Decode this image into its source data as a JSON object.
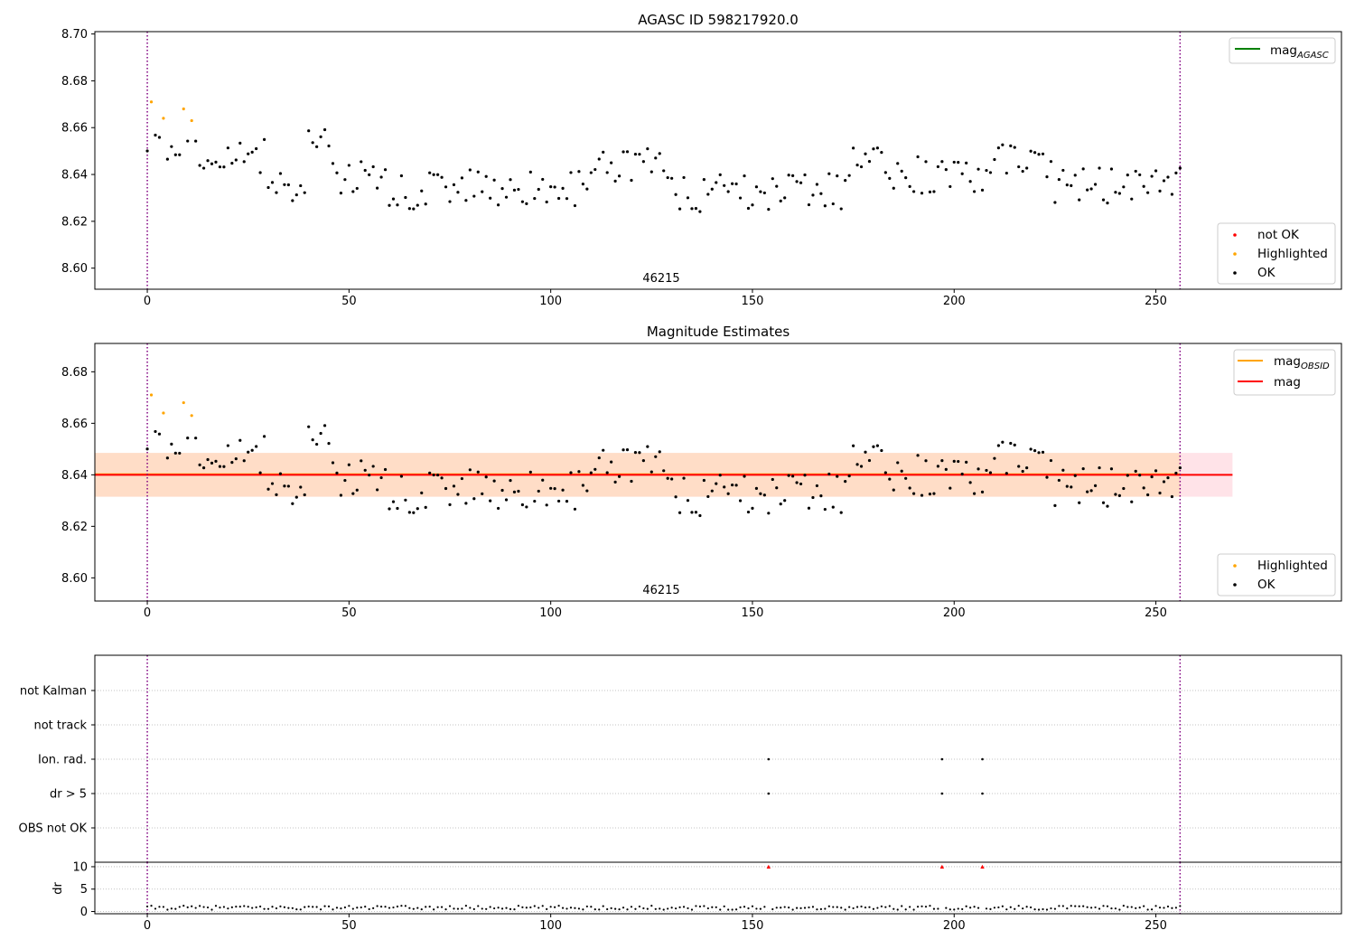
{
  "figure": {
    "panel1_title": "AGASC ID 598217920.0",
    "panel2_title": "Magnitude Estimates",
    "obsid_annotation": "46215"
  },
  "colors": {
    "ok": "#000000",
    "highlighted": "#ffa500",
    "not_ok": "#ff0000",
    "agasc_line": "#008000",
    "obsid_line": "#ffa500",
    "mag_line": "#ff0000",
    "mag_band": "#ffc0cb",
    "obsid_band": "#ffdab9",
    "boundary": "#800080",
    "grid": "#b0b0b0"
  },
  "chart_data": [
    {
      "type": "scatter",
      "title": "AGASC ID 598217920.0",
      "xlim": [
        -13,
        296
      ],
      "ylim": [
        8.591,
        8.701
      ],
      "x_ticks": [
        0,
        50,
        100,
        150,
        200,
        250
      ],
      "y_ticks": [
        8.6,
        8.62,
        8.64,
        8.66,
        8.68,
        8.7
      ],
      "y_tick_labels": [
        "8.60",
        "8.62",
        "8.64",
        "8.66",
        "8.68",
        "8.70"
      ],
      "vlines": [
        0,
        256
      ],
      "annotation": "46215",
      "legend_lines": [
        {
          "label": "mag",
          "sub": "AGASC",
          "color": "#008000"
        }
      ],
      "legend_markers": [
        {
          "label": "not OK",
          "color": "#ff0000"
        },
        {
          "label": "Highlighted",
          "color": "#ffa500"
        },
        {
          "label": "OK",
          "color": "#000000"
        }
      ],
      "series": [
        {
          "name": "Highlighted",
          "points": [
            [
              1,
              8.671
            ],
            [
              4,
              8.664
            ],
            [
              9,
              8.668
            ],
            [
              11,
              8.663
            ]
          ]
        }
      ]
    },
    {
      "type": "scatter",
      "title": "Magnitude Estimates",
      "xlim": [
        -13,
        296
      ],
      "ylim": [
        8.591,
        8.691
      ],
      "x_ticks": [
        0,
        50,
        100,
        150,
        200,
        250
      ],
      "y_ticks": [
        8.6,
        8.62,
        8.64,
        8.66,
        8.68
      ],
      "y_tick_labels": [
        "8.60",
        "8.62",
        "8.64",
        "8.66",
        "8.68"
      ],
      "vlines": [
        0,
        256
      ],
      "annotation": "46215",
      "mag_line": {
        "y": 8.64,
        "band": [
          8.6315,
          8.6485
        ],
        "x_range": [
          -13,
          269
        ]
      },
      "mag_obsid_line": {
        "y": 8.6402,
        "band": [
          8.6315,
          8.6485
        ],
        "x_range": [
          -13,
          256
        ]
      },
      "legend_lines": [
        {
          "label": "mag",
          "sub": "OBSID",
          "color": "#ffa500"
        },
        {
          "label": "mag",
          "sub": "",
          "color": "#ff0000"
        }
      ],
      "legend_markers": [
        {
          "label": "Highlighted",
          "color": "#ffa500"
        },
        {
          "label": "OK",
          "color": "#000000"
        }
      ],
      "series": [
        {
          "name": "Highlighted",
          "points": [
            [
              1,
              8.671
            ],
            [
              4,
              8.664
            ],
            [
              9,
              8.668
            ],
            [
              11,
              8.663
            ]
          ]
        }
      ]
    },
    {
      "type": "scatter",
      "title": "",
      "xlim": [
        -13,
        296
      ],
      "categories": [
        "not Kalman",
        "not track",
        "Ion. rad.",
        "dr > 5",
        "OBS not OK"
      ],
      "flag_points": {
        "Ion. rad.": [
          154,
          197,
          207
        ],
        "dr > 5": [
          154,
          197,
          207
        ]
      },
      "vlines": [
        0,
        256
      ]
    },
    {
      "type": "scatter",
      "title": "",
      "xlim": [
        -13,
        296
      ],
      "ylim": [
        -0.5,
        11
      ],
      "ylabel": "dr",
      "x_ticks": [
        0,
        50,
        100,
        150,
        200,
        250
      ],
      "y_ticks": [
        0,
        5,
        10
      ],
      "clipped_points": [
        154,
        197,
        207
      ],
      "vlines": [
        0,
        256
      ]
    }
  ]
}
